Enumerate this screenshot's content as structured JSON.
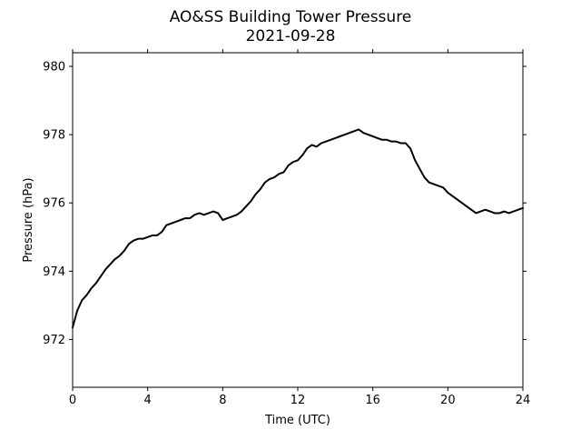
{
  "chart_data": {
    "type": "line",
    "title": "AO&SS Building Tower Pressure",
    "subtitle": "2021-09-28",
    "xlabel": "Time (UTC)",
    "ylabel": "Pressure (hPa)",
    "xlim": [
      0,
      24
    ],
    "ylim": [
      970.6,
      980.4
    ],
    "xticks": [
      0,
      4,
      8,
      12,
      16,
      20,
      24
    ],
    "yticks": [
      972,
      974,
      976,
      978,
      980
    ],
    "grid": false,
    "legend": "none",
    "line_color": "#000000",
    "series": [
      {
        "x": [
          0.0,
          0.25,
          0.5,
          0.75,
          1.0,
          1.25,
          1.5,
          1.75,
          2.0,
          2.25,
          2.5,
          2.75,
          3.0,
          3.25,
          3.5,
          3.75,
          4.0,
          4.25,
          4.5,
          4.75,
          5.0,
          5.25,
          5.5,
          5.75,
          6.0,
          6.25,
          6.5,
          6.75,
          7.0,
          7.25,
          7.5,
          7.75,
          8.0,
          8.25,
          8.5,
          8.75,
          9.0,
          9.25,
          9.5,
          9.75,
          10.0,
          10.25,
          10.5,
          10.75,
          11.0,
          11.25,
          11.5,
          11.75,
          12.0,
          12.25,
          12.5,
          12.75,
          13.0,
          13.25,
          13.5,
          13.75,
          14.0,
          14.25,
          14.5,
          14.75,
          15.0,
          15.25,
          15.5,
          15.75,
          16.0,
          16.25,
          16.5,
          16.75,
          17.0,
          17.25,
          17.5,
          17.75,
          18.0,
          18.25,
          18.5,
          18.75,
          19.0,
          19.25,
          19.5,
          19.75,
          20.0,
          20.25,
          20.5,
          20.75,
          21.0,
          21.25,
          21.5,
          21.75,
          22.0,
          22.25,
          22.5,
          22.75,
          23.0,
          23.25,
          23.5,
          23.75,
          24.0
        ],
        "values": [
          972.35,
          972.85,
          973.15,
          973.3,
          973.5,
          973.65,
          973.85,
          974.05,
          974.2,
          974.35,
          974.45,
          974.6,
          974.8,
          974.9,
          974.95,
          974.95,
          975.0,
          975.05,
          975.05,
          975.15,
          975.35,
          975.4,
          975.45,
          975.5,
          975.55,
          975.55,
          975.65,
          975.7,
          975.65,
          975.7,
          975.75,
          975.7,
          975.5,
          975.55,
          975.6,
          975.65,
          975.75,
          975.9,
          976.05,
          976.25,
          976.4,
          976.6,
          976.7,
          976.75,
          976.85,
          976.9,
          977.1,
          977.2,
          977.25,
          977.4,
          977.6,
          977.7,
          977.65,
          977.75,
          977.8,
          977.85,
          977.9,
          977.95,
          978.0,
          978.05,
          978.1,
          978.15,
          978.05,
          978.0,
          977.95,
          977.9,
          977.85,
          977.85,
          977.8,
          977.8,
          977.75,
          977.75,
          977.6,
          977.25,
          977.0,
          976.75,
          976.6,
          976.55,
          976.5,
          976.45,
          976.3,
          976.2,
          976.1,
          976.0,
          975.9,
          975.8,
          975.7,
          975.75,
          975.8,
          975.75,
          975.7,
          975.7,
          975.75,
          975.7,
          975.75,
          975.8,
          975.85
        ]
      }
    ]
  }
}
